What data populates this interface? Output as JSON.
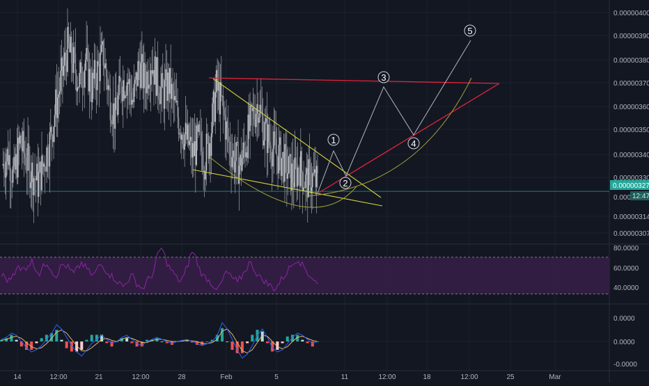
{
  "chart_data": [
    {
      "type": "candlestick",
      "panel": "price",
      "title": "",
      "ylim": [
        3e-06,
        4.05e-06
      ],
      "x_ticks": [
        "14",
        "12:00",
        "21",
        "12:00",
        "28",
        "Feb",
        "5",
        "11",
        "12:00",
        "18",
        "12:00",
        "25",
        "Mar"
      ],
      "y_ticks": [
        "0.00000400",
        "0.00000390",
        "0.00000380",
        "0.00000370",
        "0.00000360",
        "0.00000350",
        "0.00000340",
        "0.00000330",
        "0.00000314",
        "0.00000307"
      ],
      "last_price_label": "0.00000327",
      "last_price": 3.27e-06,
      "countdown_label": "12:47",
      "partial_hidden_tick": "0.000",
      "grid": true,
      "colors": {
        "up": "#26a69a",
        "down": "#ef5350",
        "candle": "#cfd2d6",
        "price_line": "#26a69a"
      },
      "price_path": [
        3.35e-06,
        3.4e-06,
        3.3e-06,
        3.45e-06,
        3.38e-06,
        3.32e-06,
        3.28e-06,
        3.36e-06,
        3.45e-06,
        3.6e-06,
        3.72e-06,
        3.85e-06,
        3.78e-06,
        3.7e-06,
        3.8e-06,
        3.68e-06,
        3.75e-06,
        3.82e-06,
        3.65e-06,
        3.55e-06,
        3.7e-06,
        3.72e-06,
        3.62e-06,
        3.78e-06,
        3.7e-06,
        3.8e-06,
        3.72e-06,
        3.65e-06,
        3.7e-06,
        3.6e-06,
        3.52e-06,
        3.46e-06,
        3.4e-06,
        3.45e-06,
        3.38e-06,
        3.48e-06,
        3.68e-06,
        3.6e-06,
        3.45e-06,
        3.38e-06,
        3.35e-06,
        3.45e-06,
        3.55e-06,
        3.62e-06,
        3.5e-06,
        3.45e-06,
        3.4e-06,
        3.38e-06,
        3.33e-06,
        3.3e-06,
        3.35e-06,
        3.28e-06,
        3.3e-06,
        3.27e-06
      ],
      "annotations": {
        "wave_labels": [
          "1",
          "2",
          "3",
          "4",
          "5"
        ],
        "drawing_colors": {
          "trend": "#d6d63c",
          "channel": "#e0243a",
          "wave": "#b2b5be",
          "arc": "#a3a33a"
        }
      }
    },
    {
      "type": "line",
      "panel": "oscillator_rsi",
      "ylim": [
        20,
        82
      ],
      "y_ticks": [
        "80.0000",
        "60.0000",
        "40.0000"
      ],
      "band": [
        70,
        30
      ],
      "colors": {
        "line": "#8e24aa",
        "band_fill": "#3a1f4a",
        "band_line": "#b08cc0"
      },
      "values": [
        50,
        48,
        45,
        52,
        60,
        55,
        58,
        62,
        66,
        58,
        52,
        60,
        64,
        58,
        50,
        54,
        62,
        60,
        56,
        52,
        58,
        64,
        60,
        55,
        50,
        56,
        62,
        58,
        54,
        50,
        46,
        42,
        38,
        44,
        50,
        46,
        40,
        36,
        42,
        48,
        55,
        72,
        80,
        70,
        60,
        54,
        48,
        44,
        50,
        62,
        76,
        70,
        58,
        50,
        46,
        42,
        38,
        36,
        44,
        54,
        50,
        46,
        42,
        48,
        56,
        64,
        60,
        52,
        48,
        44,
        40,
        38,
        36,
        42,
        48,
        54,
        60,
        66,
        68,
        62,
        56,
        50,
        46,
        40
      ]
    },
    {
      "type": "histogram",
      "panel": "macd",
      "ylim": [
        -1e-06,
        1e-06
      ],
      "y_ticks": [
        "0.0000",
        "0.0000",
        "-0.0000"
      ],
      "colors": {
        "macd": "#2962ff",
        "signal": "#e8b96a",
        "hist_up": "#26a69a",
        "hist_up_light": "#b2dfdb",
        "hist_down": "#ef5350",
        "hist_down_light": "#ffcdd2"
      },
      "macd": [
        0.1,
        0.2,
        0.4,
        0.3,
        0.0,
        -0.3,
        -0.5,
        -0.4,
        -0.2,
        0.1,
        0.4,
        0.8,
        0.6,
        0.2,
        -0.2,
        -0.5,
        -0.7,
        -0.4,
        -0.1,
        0.1,
        0.3,
        0.1,
        -0.1,
        0.0,
        0.2,
        0.3,
        0.1,
        -0.1,
        -0.2,
        0.0,
        0.1,
        0.2,
        0.1,
        0.0,
        -0.1,
        0.0,
        0.05,
        0.1,
        0.0,
        -0.1,
        -0.2,
        -0.1,
        0.0,
        0.3,
        0.9,
        0.6,
        0.1,
        -0.4,
        -0.8,
        -0.6,
        -0.2,
        0.3,
        0.6,
        0.2,
        -0.3,
        -0.5,
        -0.4,
        -0.1,
        0.2,
        0.4,
        0.3,
        0.1,
        -0.1,
        0.0
      ],
      "signal": [
        0.05,
        0.1,
        0.2,
        0.25,
        0.15,
        -0.05,
        -0.25,
        -0.35,
        -0.3,
        -0.1,
        0.15,
        0.45,
        0.55,
        0.4,
        0.1,
        -0.2,
        -0.45,
        -0.45,
        -0.3,
        -0.1,
        0.1,
        0.15,
        0.05,
        0.0,
        0.1,
        0.2,
        0.15,
        0.05,
        -0.05,
        -0.05,
        0.05,
        0.1,
        0.1,
        0.05,
        0.0,
        0.0,
        0.02,
        0.05,
        0.03,
        0.0,
        -0.1,
        -0.1,
        -0.05,
        0.1,
        0.5,
        0.6,
        0.35,
        -0.05,
        -0.45,
        -0.55,
        -0.4,
        -0.05,
        0.3,
        0.25,
        0.0,
        -0.25,
        -0.35,
        -0.25,
        0.0,
        0.2,
        0.25,
        0.15,
        0.05,
        0.0
      ]
    }
  ]
}
